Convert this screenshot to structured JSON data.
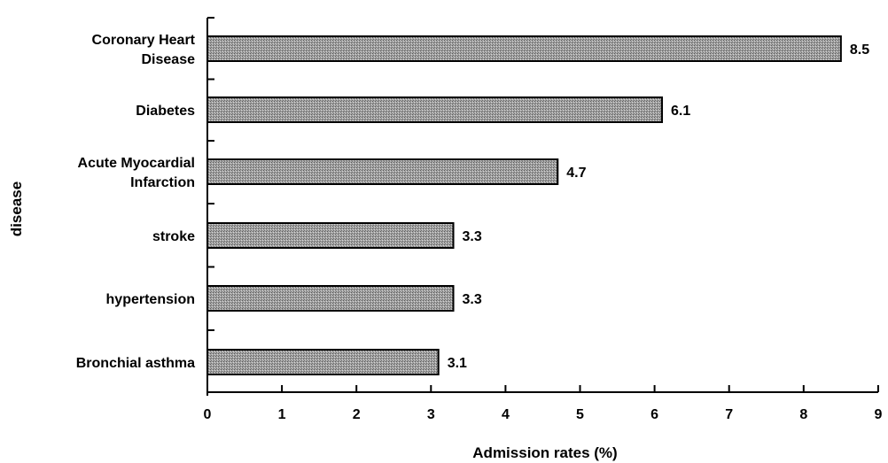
{
  "chart_data": {
    "type": "bar",
    "orientation": "horizontal",
    "title": "",
    "xlabel": "Admission rates (%)",
    "ylabel": "disease",
    "xlim": [
      0,
      9
    ],
    "x_ticks": [
      "0",
      "1",
      "2",
      "3",
      "4",
      "5",
      "6",
      "7",
      "8",
      "9"
    ],
    "grid": false,
    "legend": "none",
    "bar_color": "#9a9a9a",
    "bar_edge_color": "#000000",
    "categories": [
      [
        "Coronary Heart",
        "Disease"
      ],
      [
        "Diabetes"
      ],
      [
        "Acute Myocardial",
        "Infarction"
      ],
      [
        "stroke"
      ],
      [
        "hypertension"
      ],
      [
        "Bronchial asthma"
      ]
    ],
    "values": [
      8.5,
      6.1,
      4.7,
      3.3,
      3.3,
      3.1
    ],
    "data_labels": [
      "8.5",
      "6.1",
      "4.7",
      "3.3",
      "3.3",
      "3.1"
    ]
  }
}
